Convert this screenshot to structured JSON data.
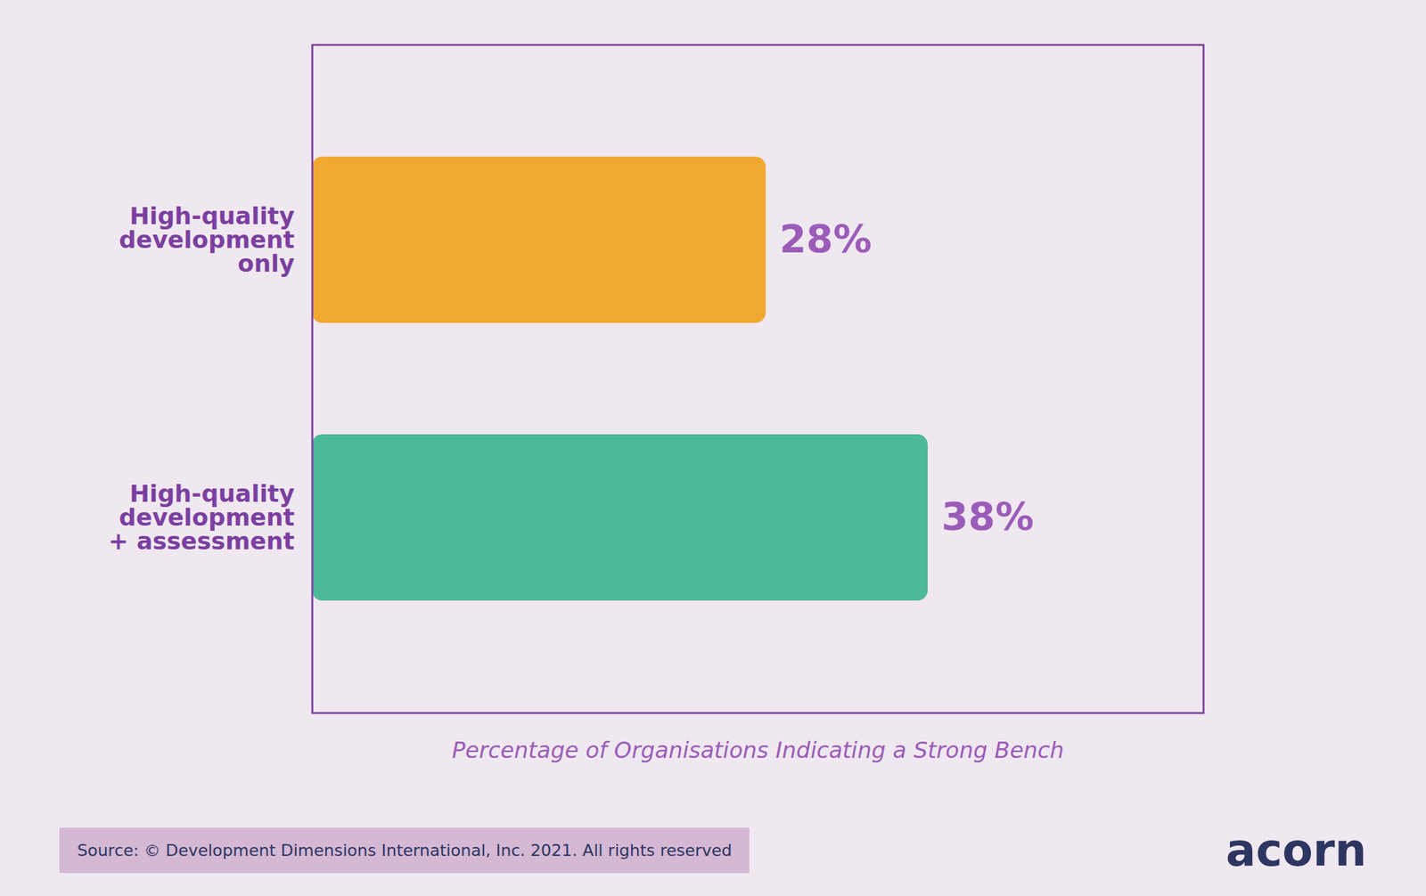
{
  "chart_data": {
    "type": "bar",
    "orientation": "horizontal",
    "categories": [
      "High-quality\ndevelopment\nonly",
      "High-quality\ndevelopment\n+ assessment"
    ],
    "values": [
      28,
      38
    ],
    "value_labels": [
      "28%",
      "38%"
    ],
    "data_labels": true,
    "colors": [
      "#f0a830",
      "#4db89a"
    ],
    "xlabel": "Percentage of Organisations Indicating a Strong Bench",
    "xlim": [
      0,
      55
    ],
    "tick_labels": "y",
    "grid": false,
    "annotations": [
      "Source: © Development Dimensions International, Inc. 2021. All rights reserved",
      "acorn"
    ]
  }
}
